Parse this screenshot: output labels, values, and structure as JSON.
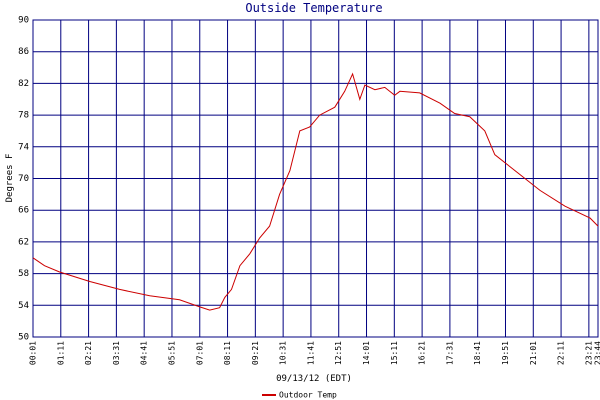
{
  "chart_data": {
    "type": "line",
    "title": "Outside Temperature",
    "ylabel": "Degrees F",
    "xlabel": "09/13/12 (EDT)",
    "xlim": [
      1,
      1424
    ],
    "ylim": [
      50,
      90
    ],
    "yticks": [
      50,
      54,
      58,
      62,
      66,
      70,
      74,
      78,
      82,
      86,
      90
    ],
    "xticks": [
      {
        "value": 1,
        "label": "00:01"
      },
      {
        "value": 71,
        "label": "01:11"
      },
      {
        "value": 141,
        "label": "02:21"
      },
      {
        "value": 211,
        "label": "03:31"
      },
      {
        "value": 281,
        "label": "04:41"
      },
      {
        "value": 351,
        "label": "05:51"
      },
      {
        "value": 421,
        "label": "07:01"
      },
      {
        "value": 491,
        "label": "08:11"
      },
      {
        "value": 561,
        "label": "09:21"
      },
      {
        "value": 631,
        "label": "10:31"
      },
      {
        "value": 701,
        "label": "11:41"
      },
      {
        "value": 771,
        "label": "12:51"
      },
      {
        "value": 841,
        "label": "14:01"
      },
      {
        "value": 911,
        "label": "15:11"
      },
      {
        "value": 981,
        "label": "16:21"
      },
      {
        "value": 1051,
        "label": "17:31"
      },
      {
        "value": 1121,
        "label": "18:41"
      },
      {
        "value": 1191,
        "label": "19:51"
      },
      {
        "value": 1261,
        "label": "21:01"
      },
      {
        "value": 1331,
        "label": "22:11"
      },
      {
        "value": 1401,
        "label": "23:21"
      },
      {
        "value": 1424,
        "label": "23:44"
      }
    ],
    "grid": true,
    "series": [
      {
        "name": "Outdoor Temp",
        "color": "#cc0000",
        "x": [
          1,
          30,
          68,
          144,
          219,
          295,
          370,
          421,
          446,
          471,
          484,
          501,
          522,
          547,
          572,
          597,
          622,
          648,
          673,
          698,
          723,
          761,
          786,
          806,
          824,
          837,
          862,
          887,
          912,
          925,
          975,
          1026,
          1063,
          1101,
          1139,
          1164,
          1202,
          1278,
          1341,
          1404,
          1424
        ],
        "values": [
          60,
          59,
          58.2,
          57,
          56,
          55.2,
          54.7,
          53.8,
          53.4,
          53.7,
          55,
          56,
          59,
          60.5,
          62.5,
          64,
          68,
          71,
          76,
          76.5,
          78,
          79,
          81,
          83.2,
          80,
          81.8,
          81.2,
          81.5,
          80.5,
          81,
          80.8,
          79.5,
          78.2,
          77.8,
          76,
          73,
          71.5,
          68.5,
          66.5,
          65,
          64
        ]
      }
    ]
  }
}
